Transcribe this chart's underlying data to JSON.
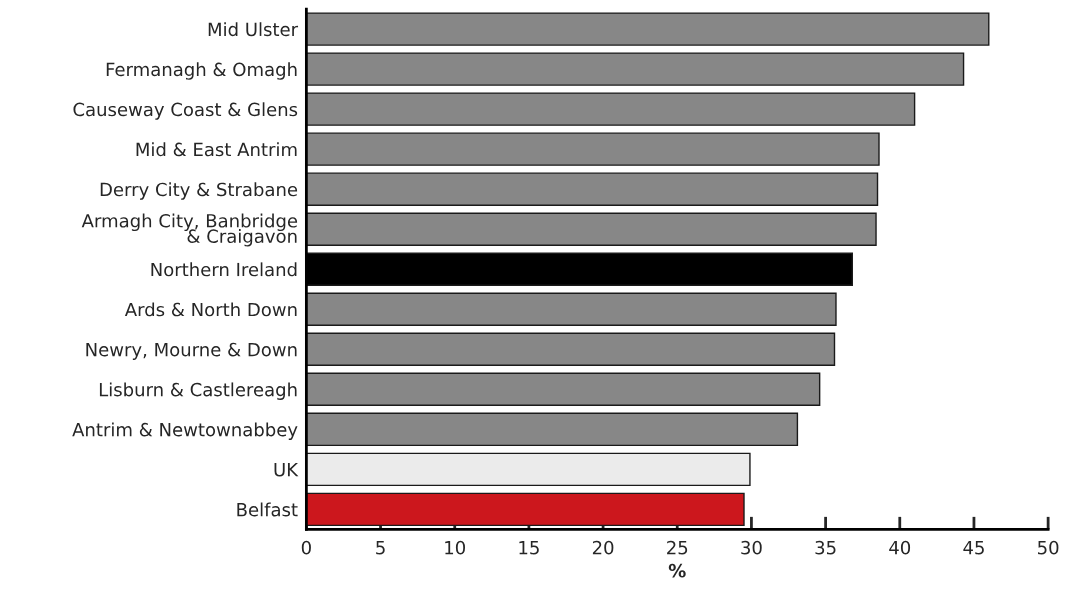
{
  "chart_data": {
    "type": "bar",
    "orientation": "horizontal",
    "xlabel": "%",
    "categories": [
      "Mid Ulster",
      "Fermanagh & Omagh",
      "Causeway Coast & Glens",
      "Mid & East Antrim",
      "Derry City & Strabane",
      "Armagh City, Banbridge\n& Craigavon",
      "Northern Ireland",
      "Ards & North Down",
      "Newry, Mourne & Down",
      "Lisburn & Castlereagh",
      "Antrim & Newtownabbey",
      "UK",
      "Belfast"
    ],
    "values": [
      46.0,
      44.3,
      41.0,
      38.6,
      38.5,
      38.4,
      36.8,
      35.7,
      35.6,
      34.6,
      33.1,
      29.9,
      29.5
    ],
    "colors": [
      "#878787",
      "#878787",
      "#878787",
      "#878787",
      "#878787",
      "#878787",
      "#000000",
      "#878787",
      "#878787",
      "#878787",
      "#878787",
      "#ebebeb",
      "#cc171d"
    ],
    "xlim": [
      0,
      50
    ],
    "xticks": [
      0,
      5,
      10,
      15,
      20,
      25,
      30,
      35,
      40,
      45,
      50
    ],
    "grid": false
  }
}
